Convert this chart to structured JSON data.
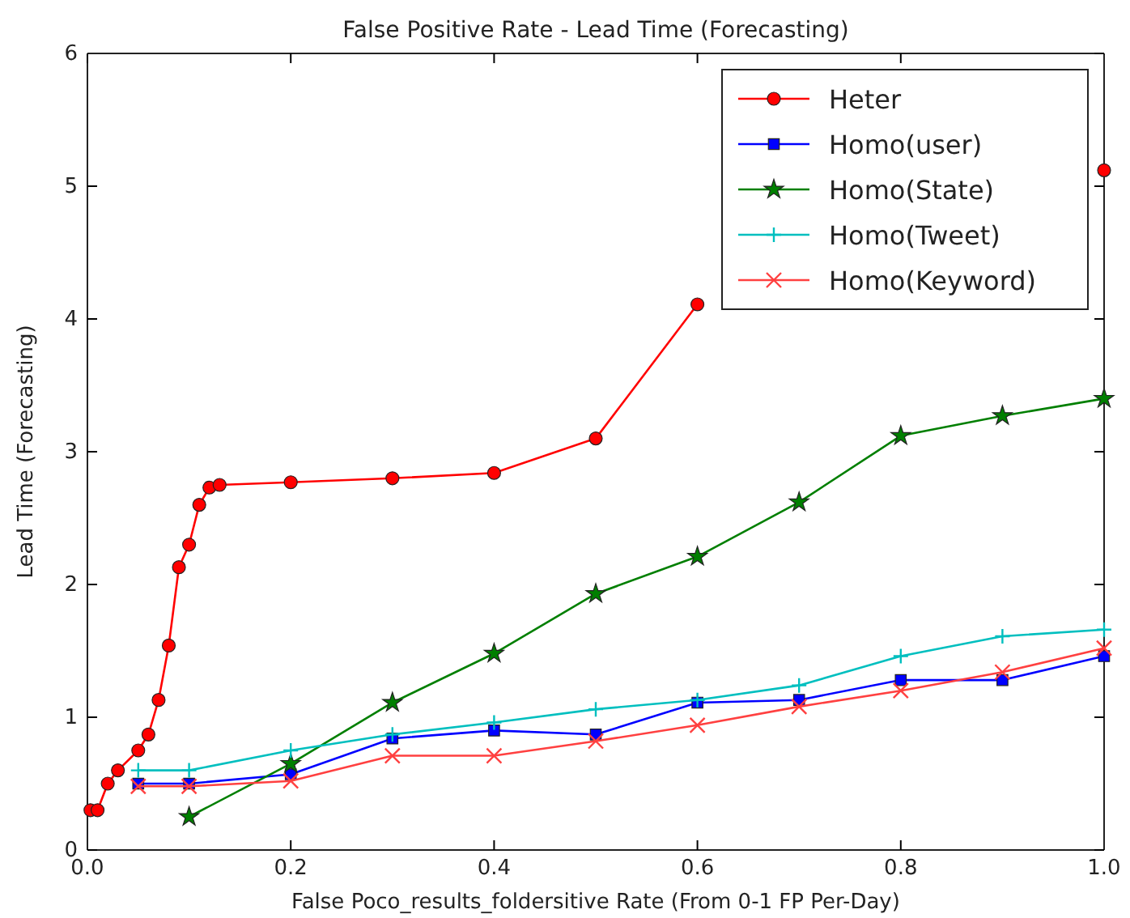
{
  "chart_data": {
    "type": "line",
    "title": "False Positive Rate - Lead Time (Forecasting)",
    "xlabel": "False Poco_results_foldersitive Rate (From 0-1 FP Per-Day)",
    "ylabel": "Lead Time (Forecasting)",
    "xlim": [
      0,
      1
    ],
    "ylim": [
      0,
      6
    ],
    "xticks": [
      {
        "value": 0,
        "label": "0.0"
      },
      0.2,
      0.4,
      0.6,
      0.8,
      {
        "value": 1,
        "label": "1.0"
      }
    ],
    "yticks": [
      0,
      1,
      2,
      3,
      4,
      5,
      6
    ],
    "grid": false,
    "legend": "top right",
    "line_style": "solid",
    "series": [
      {
        "name": "Heter",
        "color": "#ff0000",
        "marker": "circle",
        "x": [
          0.003,
          0.01,
          0.02,
          0.03,
          0.05,
          0.06,
          0.07,
          0.08,
          0.09,
          0.1,
          0.11,
          0.12,
          0.13,
          0.2,
          0.3,
          0.4,
          0.5,
          0.6,
          0.7,
          0.8,
          0.9,
          1.0
        ],
        "values": [
          0.3,
          0.3,
          0.5,
          0.6,
          0.75,
          0.87,
          1.13,
          1.54,
          2.13,
          2.3,
          2.6,
          2.73,
          2.75,
          2.77,
          2.8,
          2.84,
          3.1,
          4.11,
          null,
          null,
          null,
          5.12
        ]
      },
      {
        "name": "Homo(user)",
        "color": "#0000ff",
        "marker": "square",
        "x": [
          0.05,
          0.1,
          0.2,
          0.3,
          0.4,
          0.5,
          0.6,
          0.7,
          0.8,
          0.9,
          1.0
        ],
        "values": [
          0.5,
          0.5,
          0.57,
          0.84,
          0.9,
          0.87,
          1.11,
          1.13,
          1.28,
          1.28,
          1.46
        ]
      },
      {
        "name": "Homo(State)",
        "color": "#007f00",
        "marker": "star",
        "x": [
          0.1,
          0.2,
          0.3,
          0.4,
          0.5,
          0.6,
          0.7,
          0.8,
          0.9,
          1.0
        ],
        "values": [
          0.25,
          0.65,
          1.11,
          1.48,
          1.93,
          2.21,
          2.62,
          3.12,
          3.27,
          3.4
        ]
      },
      {
        "name": "Homo(Tweet)",
        "color": "#00bfbf",
        "marker": "plus",
        "x": [
          0.05,
          0.1,
          0.2,
          0.3,
          0.4,
          0.5,
          0.6,
          0.7,
          0.8,
          0.9,
          1.0
        ],
        "values": [
          0.6,
          0.6,
          0.75,
          0.87,
          0.96,
          1.06,
          1.13,
          1.24,
          1.46,
          1.61,
          1.66
        ]
      },
      {
        "name": "Homo(Keyword)",
        "color": "#ff4040",
        "marker": "cross",
        "x": [
          0.05,
          0.1,
          0.2,
          0.3,
          0.4,
          0.5,
          0.6,
          0.7,
          0.8,
          0.9,
          1.0
        ],
        "values": [
          0.48,
          0.48,
          0.52,
          0.71,
          0.71,
          0.82,
          0.94,
          1.08,
          1.2,
          1.34,
          1.52
        ]
      }
    ]
  }
}
